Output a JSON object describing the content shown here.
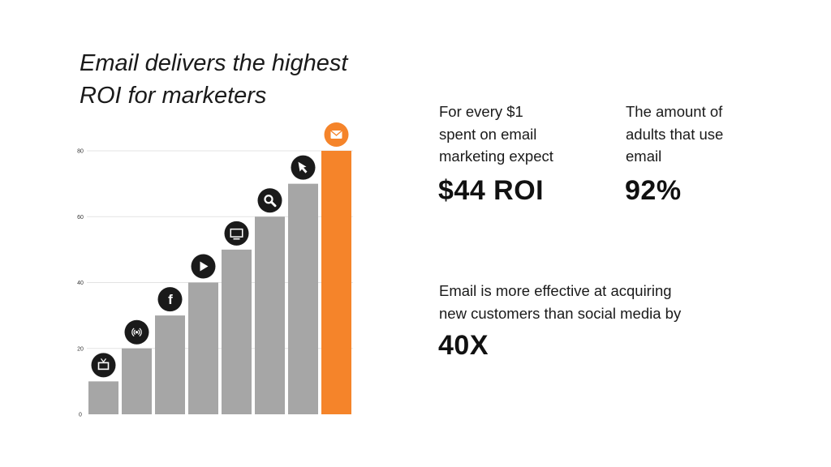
{
  "title": {
    "line1": "Email delivers the highest",
    "line2": "ROI for marketers"
  },
  "chart_data": {
    "type": "bar",
    "title": "Email delivers the highest ROI for marketers",
    "categories": [
      "TV",
      "Radio",
      "Facebook",
      "Video",
      "Display",
      "Search",
      "Online ads",
      "Email"
    ],
    "icons": [
      "tv-icon",
      "radio-icon",
      "facebook-icon",
      "video-play-icon",
      "monitor-icon",
      "search-icon",
      "cursor-icon",
      "email-icon"
    ],
    "values": [
      10,
      20,
      30,
      40,
      50,
      60,
      70,
      80
    ],
    "yticks": [
      0,
      20,
      40,
      60,
      80
    ],
    "ylim": [
      0,
      80
    ],
    "grid": true,
    "colors": {
      "bar": "#a6a6a6",
      "highlight": "#f5842a",
      "icon_bg": "#1a1a1a",
      "highlight_icon_bg": "#f5842a"
    },
    "highlight_index": 7
  },
  "stats": {
    "roi": {
      "label_lines": [
        "For every $1",
        "spent on email",
        "marketing expect"
      ],
      "value": "$44 ROI"
    },
    "adults": {
      "label_lines": [
        "The amount of",
        "adults that use",
        "email"
      ],
      "value": "92%"
    },
    "acquire": {
      "label_lines": [
        "Email is more effective at acquiring",
        "new customers than social media by"
      ],
      "value": "40X"
    }
  }
}
